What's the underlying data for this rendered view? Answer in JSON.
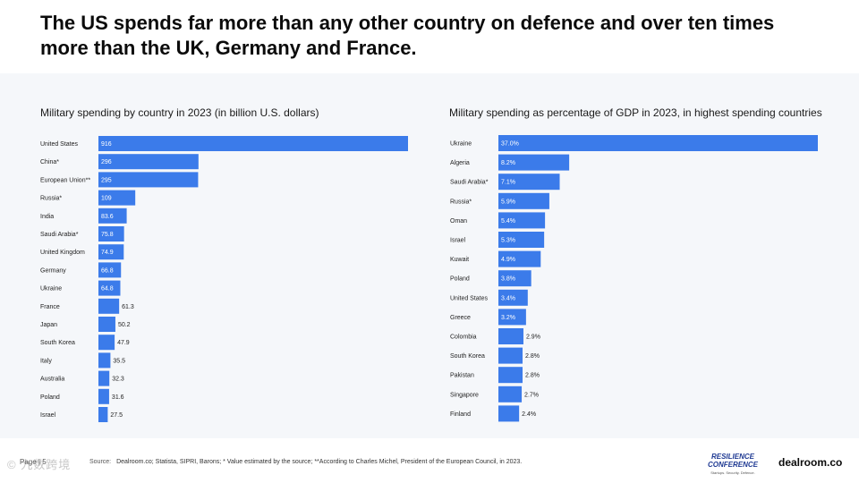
{
  "title": "The US spends far more than any other country on defence and over ten times more than the UK, Germany and France.",
  "colors": {
    "bar": "#3b7bea",
    "label_inside": "#ffffff",
    "label_outside": "#222222",
    "panel": "#f5f7fa"
  },
  "chart_data": [
    {
      "type": "bar",
      "orientation": "horizontal",
      "title": "Military spending by country in 2023 (in billion U.S. dollars)",
      "categories": [
        "United States",
        "China*",
        "European Union**",
        "Russia*",
        "India",
        "Saudi Arabia*",
        "United Kingdom",
        "Germany",
        "Ukraine",
        "France",
        "Japan",
        "South Korea",
        "Italy",
        "Australia",
        "Poland",
        "Israel"
      ],
      "values": [
        916,
        296,
        295,
        109,
        83.6,
        75.8,
        74.9,
        66.8,
        64.8,
        61.3,
        50.2,
        47.9,
        35.5,
        32.3,
        31.6,
        27.5
      ],
      "value_labels": [
        "916",
        "296",
        "295",
        "109",
        "83.6",
        "75.8",
        "74.9",
        "66.8",
        "64.8",
        "61.3",
        "50.2",
        "47.9",
        "35.5",
        "32.3",
        "31.6",
        "27.5"
      ],
      "xlim": [
        0,
        916
      ]
    },
    {
      "type": "bar",
      "orientation": "horizontal",
      "title": "Military spending as percentage of GDP in 2023, in highest spending countries",
      "categories": [
        "Ukraine",
        "Algeria",
        "Saudi Arabia*",
        "Russia*",
        "Oman",
        "Israel",
        "Kuwait",
        "Poland",
        "United States",
        "Greece",
        "Colombia",
        "South Korea",
        "Pakistan",
        "Singapore",
        "Finland"
      ],
      "values": [
        37.0,
        8.2,
        7.1,
        5.9,
        5.4,
        5.3,
        4.9,
        3.8,
        3.4,
        3.2,
        2.9,
        2.8,
        2.8,
        2.7,
        2.4
      ],
      "value_labels": [
        "37.0%",
        "8.2%",
        "7.1%",
        "5.9%",
        "5.4%",
        "5.3%",
        "4.9%",
        "3.8%",
        "3.4%",
        "3.2%",
        "2.9%",
        "2.8%",
        "2.8%",
        "2.7%",
        "2.4%"
      ],
      "xlim": [
        0,
        37.0
      ]
    }
  ],
  "footer": {
    "page": "Page | 5",
    "source_label": "Source:",
    "source_text": "Dealroom.co;  Statista, SIPRI, Barons; * Value estimated by the source; **According to Charles Michel, President of the European Council, in 2023.",
    "logo_rc_line1": "RESILIENCE",
    "logo_rc_line2": "CONFERENCE",
    "logo_rc_tag": "Startups. Security. Defence.",
    "logo_dealroom": "dealroom.co",
    "watermark": "© 九数跨境"
  }
}
